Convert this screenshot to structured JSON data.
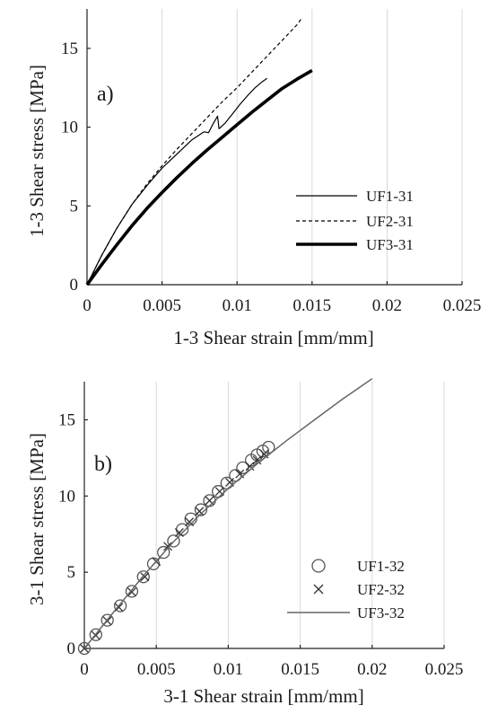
{
  "chart_data": [
    {
      "type": "line",
      "panel_label": "a)",
      "xlabel": "1-3 Shear strain [mm/mm]",
      "ylabel": "1-3 Shear stress [MPa]",
      "xlim": [
        0,
        0.025
      ],
      "ylim": [
        0,
        17.5
      ],
      "xticks": [
        0,
        0.005,
        0.01,
        0.015,
        0.02,
        0.025
      ],
      "xtick_labels": [
        "0",
        "0.005",
        "0.01",
        "0.015",
        "0.02",
        "0.025"
      ],
      "yticks": [
        0,
        5,
        10,
        15
      ],
      "ytick_labels": [
        "0",
        "5",
        "10",
        "15"
      ],
      "grid": "vertical",
      "legend_position": "right",
      "series": [
        {
          "name": "UF1-31",
          "style": "thin-solid",
          "color": "#000000",
          "x": [
            0,
            0.001,
            0.002,
            0.003,
            0.004,
            0.005,
            0.006,
            0.007,
            0.0078,
            0.0081,
            0.0084,
            0.0087,
            0.0088,
            0.0092,
            0.0097,
            0.0102,
            0.0107,
            0.0112,
            0.0117,
            0.012
          ],
          "y": [
            0,
            1.9,
            3.6,
            5.1,
            6.3,
            7.4,
            8.3,
            9.2,
            9.7,
            9.65,
            10.2,
            10.7,
            9.9,
            10.25,
            10.85,
            11.45,
            12.0,
            12.5,
            12.9,
            13.1
          ]
        },
        {
          "name": "UF2-31",
          "style": "dashed",
          "color": "#000000",
          "x": [
            0,
            0.001,
            0.002,
            0.003,
            0.004,
            0.005,
            0.006,
            0.007,
            0.008,
            0.009,
            0.01,
            0.011,
            0.012,
            0.013,
            0.014,
            0.0143
          ],
          "y": [
            0,
            1.9,
            3.6,
            5.1,
            6.4,
            7.55,
            8.6,
            9.6,
            10.6,
            11.6,
            12.5,
            13.5,
            14.5,
            15.5,
            16.5,
            16.9
          ]
        },
        {
          "name": "UF3-31",
          "style": "thick-solid",
          "color": "#000000",
          "x": [
            0,
            0.001,
            0.002,
            0.003,
            0.004,
            0.005,
            0.006,
            0.007,
            0.008,
            0.009,
            0.01,
            0.011,
            0.012,
            0.013,
            0.014,
            0.015
          ],
          "y": [
            0,
            1.3,
            2.55,
            3.75,
            4.85,
            5.85,
            6.8,
            7.7,
            8.55,
            9.35,
            10.15,
            10.95,
            11.7,
            12.45,
            13.05,
            13.6
          ]
        }
      ]
    },
    {
      "type": "scatter",
      "panel_label": "b)",
      "xlabel": "3-1 Shear strain [mm/mm]",
      "ylabel": "3-1 Shear stress [MPa]",
      "xlim": [
        0,
        0.025
      ],
      "ylim": [
        0,
        17.5
      ],
      "xticks": [
        0,
        0.005,
        0.01,
        0.015,
        0.02,
        0.025
      ],
      "xtick_labels": [
        "0",
        "0.005",
        "0.01",
        "0.015",
        "0.02",
        "0.025"
      ],
      "yticks": [
        0,
        5,
        10,
        15
      ],
      "ytick_labels": [
        "0",
        "5",
        "10",
        "15"
      ],
      "grid": "vertical",
      "legend_position": "right",
      "series": [
        {
          "name": "UF1-32",
          "marker": "circle",
          "color": "#555555",
          "x": [
            0,
            0.0008,
            0.0016,
            0.0025,
            0.0033,
            0.0041,
            0.0048,
            0.0055,
            0.0062,
            0.0068,
            0.0074,
            0.0081,
            0.0087,
            0.0093,
            0.0099,
            0.0105,
            0.011,
            0.0116,
            0.012,
            0.0124,
            0.0128
          ],
          "y": [
            0,
            0.9,
            1.85,
            2.8,
            3.75,
            4.7,
            5.55,
            6.3,
            7.05,
            7.8,
            8.5,
            9.1,
            9.7,
            10.3,
            10.85,
            11.35,
            11.85,
            12.35,
            12.7,
            12.95,
            13.2
          ]
        },
        {
          "name": "UF2-32",
          "marker": "x",
          "color": "#333333",
          "x": [
            0,
            0.0008,
            0.0016,
            0.0024,
            0.0033,
            0.0042,
            0.005,
            0.0058,
            0.0066,
            0.0073,
            0.008,
            0.0087,
            0.0094,
            0.0101,
            0.0108,
            0.0115,
            0.012,
            0.0125
          ],
          "y": [
            0,
            0.85,
            1.8,
            2.7,
            3.7,
            4.7,
            5.7,
            6.7,
            7.6,
            8.3,
            9.0,
            9.7,
            10.3,
            10.9,
            11.45,
            11.95,
            12.35,
            12.75
          ]
        },
        {
          "name": "UF3-32",
          "marker": "line",
          "color": "#666666",
          "x": [
            0,
            0.002,
            0.004,
            0.006,
            0.008,
            0.01,
            0.012,
            0.014,
            0.016,
            0.018,
            0.02
          ],
          "y": [
            0,
            2.35,
            4.65,
            6.8,
            8.75,
            10.5,
            12.1,
            13.6,
            15.0,
            16.4,
            17.7
          ]
        }
      ]
    }
  ]
}
